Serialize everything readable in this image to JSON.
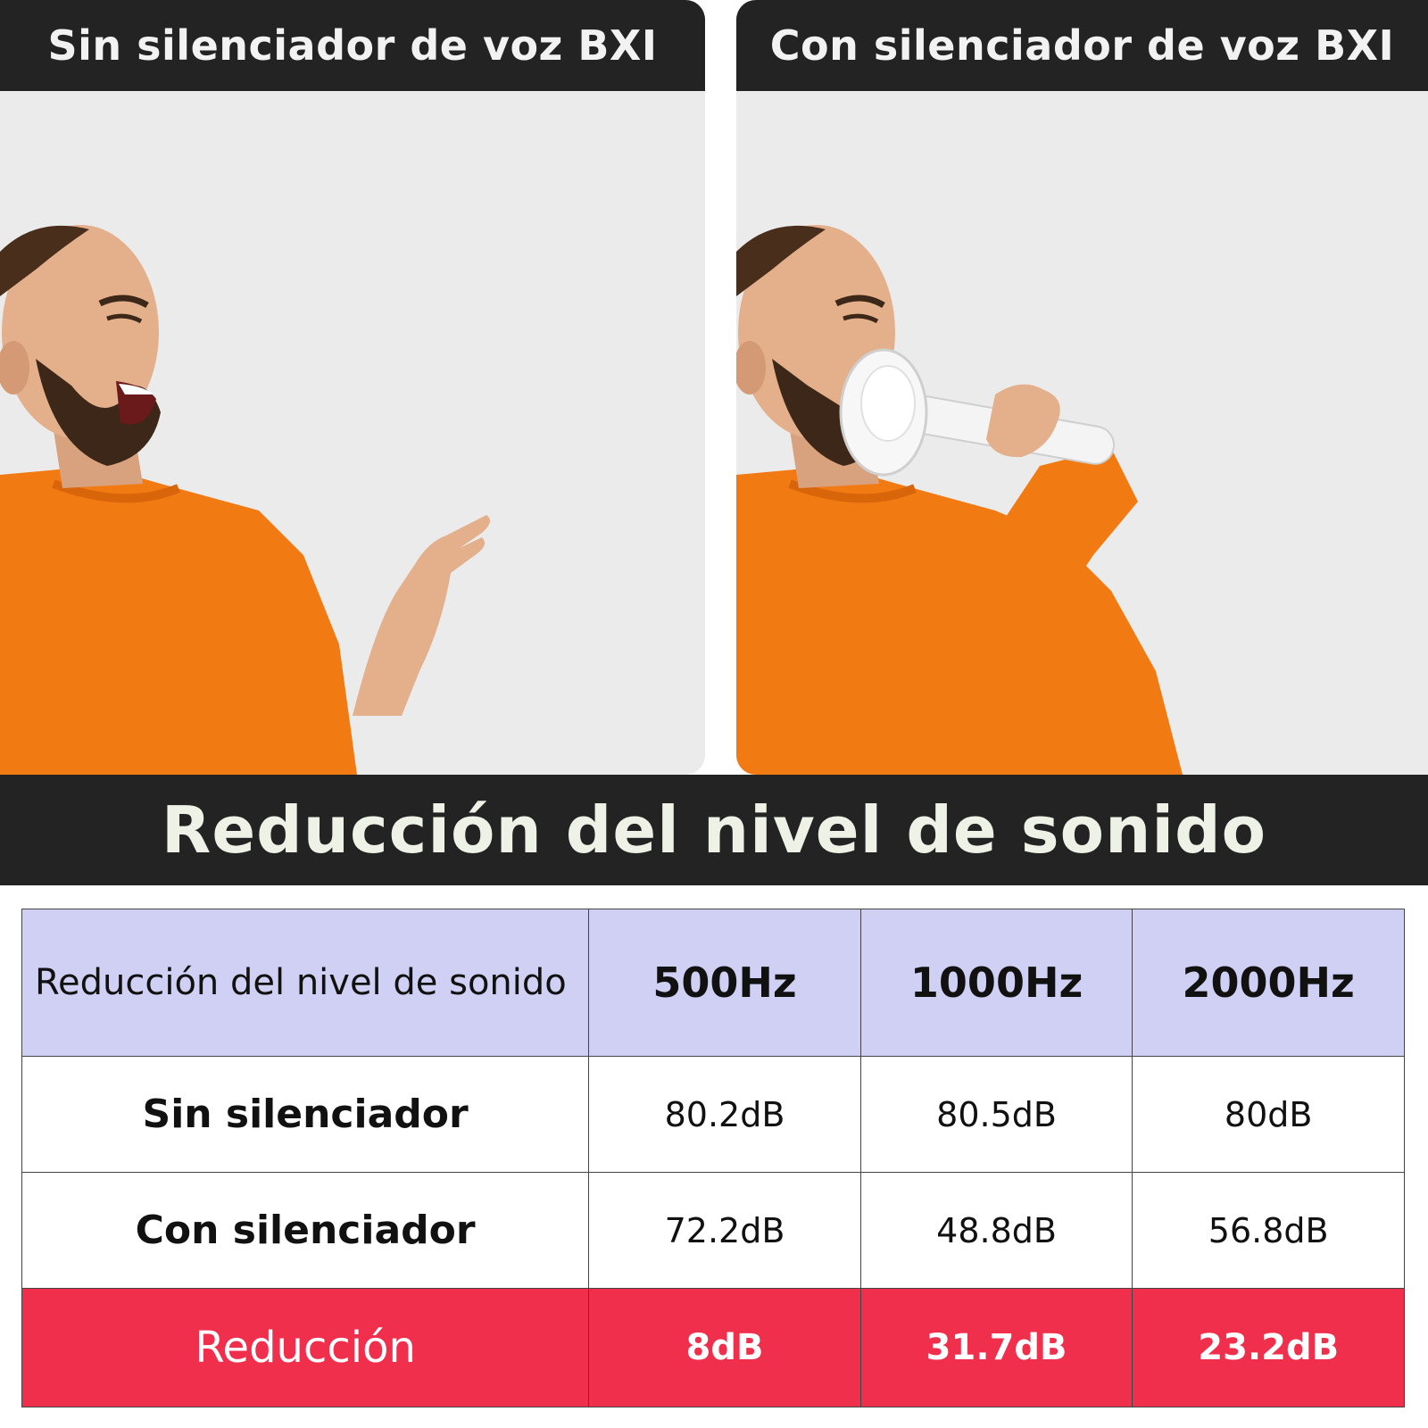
{
  "panels": {
    "left_title": "Sin silenciador de voz BXI",
    "right_title": "Con silenciador de voz BXI"
  },
  "colors": {
    "header_bg": "#232323",
    "wave_start": "#3a1ff0",
    "wave_end": "#f0304a",
    "sweater": "#f27a12",
    "table_header_bg": "#d0d0f4",
    "reduction_bg": "#ef2f4b"
  },
  "banner": {
    "title": "Reducción del nivel de sonido"
  },
  "table": {
    "corner": "Reducción del nivel de sonido",
    "columns": [
      "500Hz",
      "1000Hz",
      "2000Hz"
    ],
    "rows": [
      {
        "label": "Sin silenciador",
        "values": [
          "80.2dB",
          "80.5dB",
          "80dB"
        ]
      },
      {
        "label": "Con silenciador",
        "values": [
          "72.2dB",
          "48.8dB",
          "56.8dB"
        ]
      },
      {
        "label": "Reducción",
        "values": [
          "8dB",
          "31.7dB",
          "23.2dB"
        ]
      }
    ]
  }
}
